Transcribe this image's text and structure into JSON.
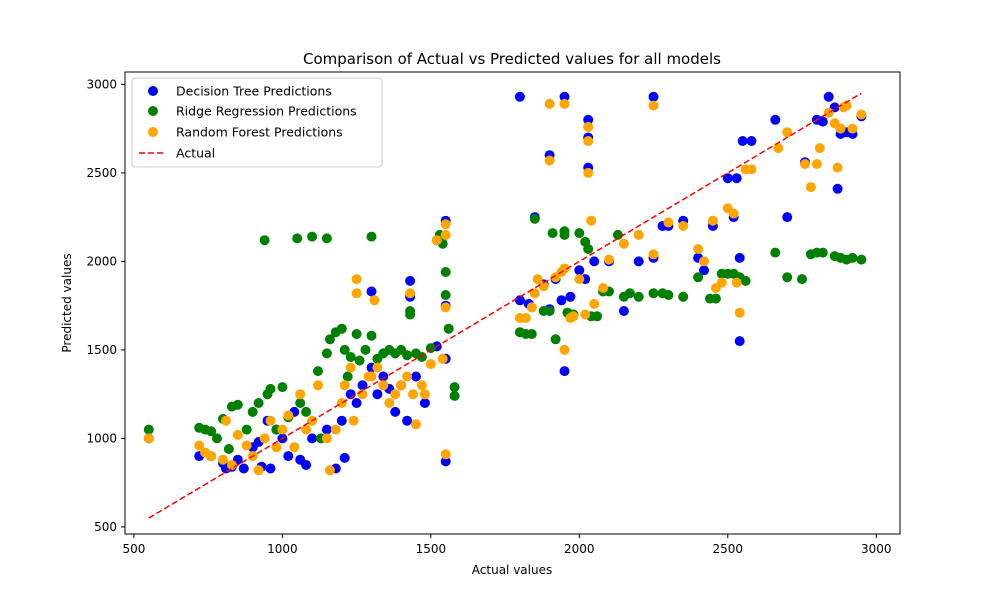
{
  "chart_data": {
    "type": "scatter",
    "title": "Comparison of Actual vs Predicted values for all models",
    "xlabel": "Actual values",
    "ylabel": "Predicted values",
    "xlim": [
      470,
      3080
    ],
    "ylim": [
      460,
      3070
    ],
    "xticks": [
      500,
      1000,
      1500,
      2000,
      2500,
      3000
    ],
    "yticks": [
      500,
      1000,
      1500,
      2000,
      2500,
      3000
    ],
    "grid": false,
    "legend_position": "top-left",
    "series": [
      {
        "name": "Decision Tree Predictions",
        "color": "#0000ff",
        "points": [
          [
            550,
            1000
          ],
          [
            720,
            900
          ],
          [
            760,
            900
          ],
          [
            800,
            860
          ],
          [
            810,
            830
          ],
          [
            830,
            840
          ],
          [
            850,
            880
          ],
          [
            870,
            830
          ],
          [
            900,
            950
          ],
          [
            920,
            980
          ],
          [
            930,
            840
          ],
          [
            950,
            1100
          ],
          [
            960,
            830
          ],
          [
            980,
            1050
          ],
          [
            1000,
            1000
          ],
          [
            1020,
            900
          ],
          [
            1040,
            1150
          ],
          [
            1060,
            880
          ],
          [
            1080,
            850
          ],
          [
            1100,
            1000
          ],
          [
            1150,
            1050
          ],
          [
            1180,
            830
          ],
          [
            1200,
            1100
          ],
          [
            1210,
            890
          ],
          [
            1230,
            1250
          ],
          [
            1250,
            1200
          ],
          [
            1270,
            1300
          ],
          [
            1300,
            1400
          ],
          [
            1300,
            1830
          ],
          [
            1320,
            1250
          ],
          [
            1340,
            1350
          ],
          [
            1360,
            1280
          ],
          [
            1380,
            1150
          ],
          [
            1400,
            1300
          ],
          [
            1420,
            1100
          ],
          [
            1430,
            1800
          ],
          [
            1430,
            1890
          ],
          [
            1450,
            1350
          ],
          [
            1480,
            1200
          ],
          [
            1520,
            1520
          ],
          [
            1550,
            1450
          ],
          [
            1550,
            870
          ],
          [
            1550,
            1750
          ],
          [
            1550,
            2230
          ],
          [
            1800,
            1780
          ],
          [
            1800,
            2930
          ],
          [
            1830,
            1760
          ],
          [
            1850,
            2250
          ],
          [
            1880,
            1870
          ],
          [
            1900,
            2600
          ],
          [
            1900,
            1730
          ],
          [
            1920,
            1900
          ],
          [
            1940,
            1780
          ],
          [
            1950,
            1380
          ],
          [
            1950,
            2930
          ],
          [
            1970,
            1800
          ],
          [
            1980,
            1700
          ],
          [
            2000,
            1950
          ],
          [
            2020,
            1900
          ],
          [
            2030,
            2800
          ],
          [
            2030,
            2700
          ],
          [
            2030,
            2530
          ],
          [
            2050,
            2000
          ],
          [
            2100,
            2000
          ],
          [
            2150,
            1720
          ],
          [
            2200,
            2000
          ],
          [
            2250,
            2020
          ],
          [
            2250,
            2930
          ],
          [
            2280,
            2200
          ],
          [
            2300,
            2200
          ],
          [
            2350,
            2230
          ],
          [
            2400,
            2020
          ],
          [
            2420,
            1950
          ],
          [
            2450,
            2200
          ],
          [
            2500,
            2470
          ],
          [
            2520,
            2250
          ],
          [
            2530,
            2470
          ],
          [
            2540,
            2020
          ],
          [
            2550,
            2680
          ],
          [
            2540,
            1550
          ],
          [
            2580,
            2680
          ],
          [
            2660,
            2800
          ],
          [
            2700,
            2250
          ],
          [
            2760,
            2560
          ],
          [
            2800,
            2800
          ],
          [
            2820,
            2790
          ],
          [
            2840,
            2930
          ],
          [
            2860,
            2870
          ],
          [
            2870,
            2410
          ],
          [
            2880,
            2720
          ],
          [
            2900,
            2730
          ],
          [
            2920,
            2720
          ],
          [
            2950,
            2820
          ]
        ]
      },
      {
        "name": "Ridge Regression Predictions",
        "color": "#008000",
        "points": [
          [
            550,
            1050
          ],
          [
            720,
            1060
          ],
          [
            740,
            1050
          ],
          [
            760,
            1040
          ],
          [
            780,
            1000
          ],
          [
            800,
            1110
          ],
          [
            820,
            940
          ],
          [
            830,
            1180
          ],
          [
            850,
            1190
          ],
          [
            880,
            1050
          ],
          [
            900,
            1150
          ],
          [
            920,
            1200
          ],
          [
            940,
            2120
          ],
          [
            950,
            1250
          ],
          [
            960,
            1280
          ],
          [
            980,
            1050
          ],
          [
            1000,
            1290
          ],
          [
            1020,
            1120
          ],
          [
            1050,
            2130
          ],
          [
            1060,
            1200
          ],
          [
            1080,
            1150
          ],
          [
            1100,
            2140
          ],
          [
            1120,
            1380
          ],
          [
            1130,
            1000
          ],
          [
            1150,
            2130
          ],
          [
            1150,
            1480
          ],
          [
            1160,
            1560
          ],
          [
            1180,
            1600
          ],
          [
            1200,
            1620
          ],
          [
            1210,
            1500
          ],
          [
            1220,
            1350
          ],
          [
            1230,
            1460
          ],
          [
            1250,
            1590
          ],
          [
            1260,
            1440
          ],
          [
            1280,
            1500
          ],
          [
            1300,
            2140
          ],
          [
            1300,
            1580
          ],
          [
            1320,
            1450
          ],
          [
            1340,
            1480
          ],
          [
            1360,
            1500
          ],
          [
            1380,
            1480
          ],
          [
            1400,
            1500
          ],
          [
            1420,
            1470
          ],
          [
            1430,
            1700
          ],
          [
            1430,
            1720
          ],
          [
            1450,
            1480
          ],
          [
            1470,
            1460
          ],
          [
            1500,
            1510
          ],
          [
            1520,
            2120
          ],
          [
            1530,
            2150
          ],
          [
            1540,
            2100
          ],
          [
            1550,
            1940
          ],
          [
            1550,
            1810
          ],
          [
            1560,
            1620
          ],
          [
            1580,
            1290
          ],
          [
            1580,
            1240
          ],
          [
            1800,
            1600
          ],
          [
            1820,
            1590
          ],
          [
            1840,
            1590
          ],
          [
            1850,
            2240
          ],
          [
            1880,
            1720
          ],
          [
            1900,
            1720
          ],
          [
            1910,
            2160
          ],
          [
            1920,
            1560
          ],
          [
            1950,
            2170
          ],
          [
            1950,
            2150
          ],
          [
            1960,
            1710
          ],
          [
            1980,
            1700
          ],
          [
            2000,
            2160
          ],
          [
            2020,
            2110
          ],
          [
            2030,
            2070
          ],
          [
            2040,
            1690
          ],
          [
            2060,
            1690
          ],
          [
            2080,
            1830
          ],
          [
            2100,
            1830
          ],
          [
            2130,
            2150
          ],
          [
            2150,
            1800
          ],
          [
            2170,
            1820
          ],
          [
            2200,
            1800
          ],
          [
            2250,
            1820
          ],
          [
            2280,
            1820
          ],
          [
            2300,
            1810
          ],
          [
            2350,
            1800
          ],
          [
            2400,
            1910
          ],
          [
            2440,
            1790
          ],
          [
            2460,
            1790
          ],
          [
            2480,
            1930
          ],
          [
            2500,
            1930
          ],
          [
            2520,
            1930
          ],
          [
            2540,
            1910
          ],
          [
            2560,
            1890
          ],
          [
            2660,
            2050
          ],
          [
            2700,
            1910
          ],
          [
            2750,
            1900
          ],
          [
            2780,
            2040
          ],
          [
            2800,
            2050
          ],
          [
            2820,
            2050
          ],
          [
            2860,
            2030
          ],
          [
            2880,
            2020
          ],
          [
            2900,
            2010
          ],
          [
            2920,
            2020
          ],
          [
            2950,
            2010
          ]
        ]
      },
      {
        "name": "Random Forest Predictions",
        "color": "#ffa500",
        "points": [
          [
            550,
            1000
          ],
          [
            720,
            960
          ],
          [
            740,
            920
          ],
          [
            760,
            900
          ],
          [
            800,
            880
          ],
          [
            810,
            1100
          ],
          [
            830,
            850
          ],
          [
            850,
            1020
          ],
          [
            880,
            960
          ],
          [
            900,
            900
          ],
          [
            920,
            820
          ],
          [
            940,
            1000
          ],
          [
            960,
            1100
          ],
          [
            980,
            950
          ],
          [
            1000,
            1050
          ],
          [
            1020,
            1130
          ],
          [
            1040,
            950
          ],
          [
            1060,
            1250
          ],
          [
            1080,
            1050
          ],
          [
            1100,
            1100
          ],
          [
            1120,
            1300
          ],
          [
            1150,
            1000
          ],
          [
            1160,
            820
          ],
          [
            1180,
            1050
          ],
          [
            1200,
            1200
          ],
          [
            1210,
            1300
          ],
          [
            1230,
            1400
          ],
          [
            1240,
            1100
          ],
          [
            1250,
            1820
          ],
          [
            1250,
            1900
          ],
          [
            1270,
            1250
          ],
          [
            1290,
            1350
          ],
          [
            1300,
            1350
          ],
          [
            1310,
            1780
          ],
          [
            1320,
            1400
          ],
          [
            1340,
            1300
          ],
          [
            1360,
            1200
          ],
          [
            1380,
            1250
          ],
          [
            1400,
            1300
          ],
          [
            1420,
            1350
          ],
          [
            1430,
            1820
          ],
          [
            1440,
            1250
          ],
          [
            1450,
            1080
          ],
          [
            1470,
            1300
          ],
          [
            1480,
            1250
          ],
          [
            1500,
            1420
          ],
          [
            1520,
            2120
          ],
          [
            1540,
            1450
          ],
          [
            1550,
            1740
          ],
          [
            1550,
            2150
          ],
          [
            1550,
            2210
          ],
          [
            1550,
            910
          ],
          [
            1800,
            1680
          ],
          [
            1820,
            1680
          ],
          [
            1840,
            1740
          ],
          [
            1850,
            1820
          ],
          [
            1860,
            1900
          ],
          [
            1880,
            1860
          ],
          [
            1900,
            2890
          ],
          [
            1900,
            2570
          ],
          [
            1920,
            1910
          ],
          [
            1940,
            1940
          ],
          [
            1950,
            1500
          ],
          [
            1950,
            1960
          ],
          [
            1950,
            2890
          ],
          [
            1970,
            1680
          ],
          [
            1980,
            1690
          ],
          [
            2000,
            1900
          ],
          [
            2020,
            1700
          ],
          [
            2030,
            2760
          ],
          [
            2030,
            2500
          ],
          [
            2030,
            2680
          ],
          [
            2040,
            2230
          ],
          [
            2050,
            1760
          ],
          [
            2080,
            1850
          ],
          [
            2100,
            2010
          ],
          [
            2150,
            2100
          ],
          [
            2200,
            2150
          ],
          [
            2250,
            2040
          ],
          [
            2250,
            2880
          ],
          [
            2300,
            2220
          ],
          [
            2350,
            2200
          ],
          [
            2400,
            2070
          ],
          [
            2420,
            2000
          ],
          [
            2450,
            2230
          ],
          [
            2460,
            1850
          ],
          [
            2480,
            1880
          ],
          [
            2500,
            2300
          ],
          [
            2520,
            2270
          ],
          [
            2530,
            1880
          ],
          [
            2540,
            1710
          ],
          [
            2560,
            2520
          ],
          [
            2580,
            2520
          ],
          [
            2670,
            2640
          ],
          [
            2700,
            2730
          ],
          [
            2760,
            2550
          ],
          [
            2780,
            2420
          ],
          [
            2800,
            2550
          ],
          [
            2810,
            2640
          ],
          [
            2840,
            2840
          ],
          [
            2860,
            2780
          ],
          [
            2870,
            2530
          ],
          [
            2880,
            2750
          ],
          [
            2890,
            2870
          ],
          [
            2900,
            2880
          ],
          [
            2920,
            2750
          ],
          [
            2950,
            2830
          ]
        ]
      }
    ],
    "reference_line": {
      "name": "Actual",
      "color": "#ff0000",
      "style": "dashed",
      "x": [
        550,
        2950
      ],
      "y": [
        550,
        2950
      ]
    }
  }
}
